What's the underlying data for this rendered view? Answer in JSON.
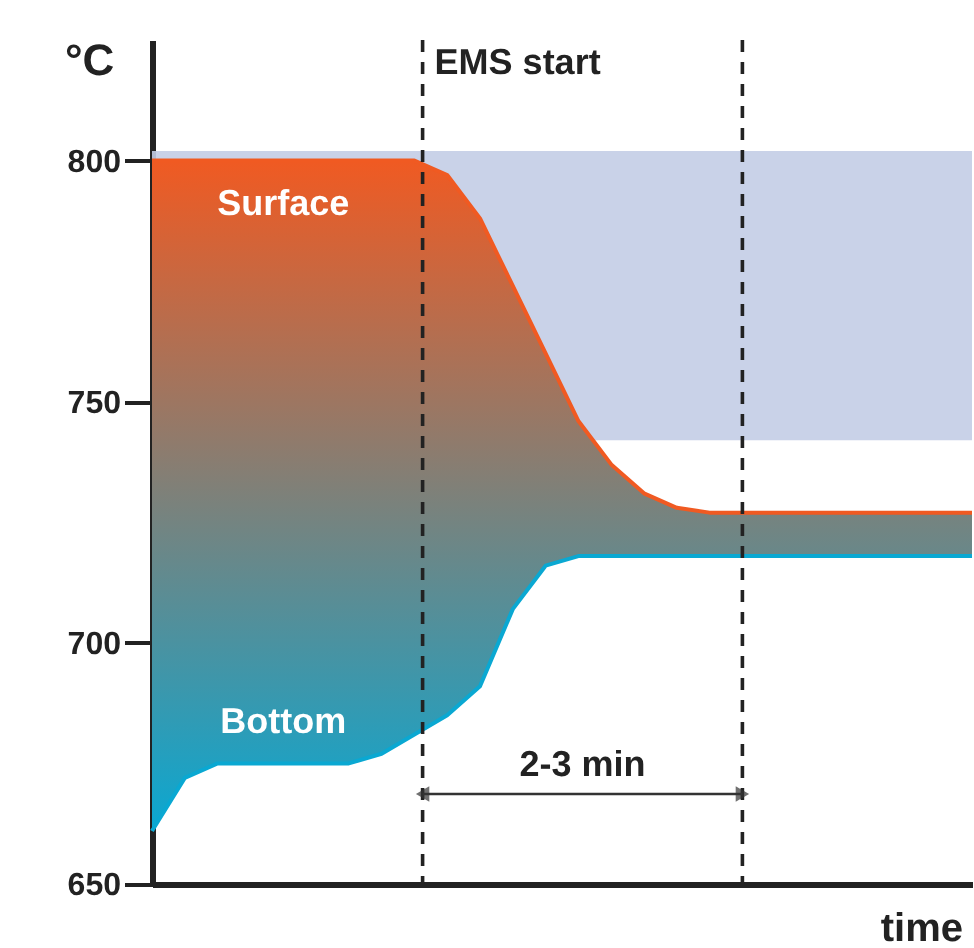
{
  "chart_data": {
    "type": "line",
    "ylabel": "°C",
    "xlabel": "time",
    "ylim": [
      650,
      825
    ],
    "yticks": [
      650,
      700,
      750,
      800
    ],
    "tick_labels": "y",
    "categories": [
      null,
      null,
      null,
      null,
      null,
      null,
      null,
      null,
      null,
      null,
      null,
      null,
      null,
      null,
      null,
      null,
      null,
      null,
      null,
      null,
      null,
      null,
      null,
      null,
      null,
      null
    ],
    "series": [
      {
        "name": "Surface",
        "color": "#f05a22",
        "values": [
          800,
          800,
          800,
          800,
          800,
          800,
          800,
          800,
          800,
          797,
          788,
          774,
          760,
          746,
          737,
          731,
          728,
          727,
          727,
          727,
          727,
          727,
          727,
          727,
          727,
          727
        ],
        "lower": [
          661,
          672,
          675,
          675,
          675,
          675,
          675,
          677,
          681,
          685,
          691,
          707,
          716,
          718,
          718,
          718,
          718,
          718,
          718,
          718,
          718,
          718,
          718,
          718,
          718,
          718
        ],
        "upper": [
          800,
          800,
          800,
          800,
          800,
          800,
          800,
          800,
          800,
          797,
          788,
          774,
          760,
          746,
          737,
          731,
          728,
          727,
          727,
          727,
          727,
          727,
          727,
          727,
          727,
          727
        ]
      },
      {
        "name": "Bottom",
        "color": "#0aa8d2",
        "values": [
          661,
          672,
          675,
          675,
          675,
          675,
          675,
          677,
          681,
          685,
          691,
          707,
          716,
          718,
          718,
          718,
          718,
          718,
          718,
          718,
          718,
          718,
          718,
          718,
          718,
          718
        ]
      }
    ],
    "bands": [
      {
        "axis": "y",
        "from": 742,
        "to": 802,
        "color": "#c3cde6"
      }
    ],
    "annotations": [
      "EMS start",
      "2-3 min"
    ]
  }
}
